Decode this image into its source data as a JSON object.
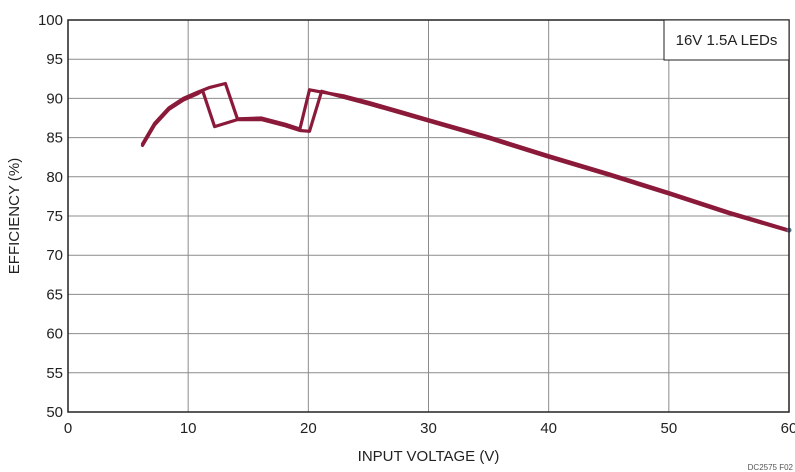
{
  "chart_data": {
    "type": "line",
    "title": "",
    "xlabel": "INPUT VOLTAGE (V)",
    "ylabel": "EFFICIENCY (%)",
    "xlim": [
      0,
      60
    ],
    "ylim": [
      50,
      100
    ],
    "xticks": [
      0,
      10,
      20,
      30,
      40,
      50,
      60
    ],
    "yticks": [
      50,
      55,
      60,
      65,
      70,
      75,
      80,
      85,
      90,
      95,
      100
    ],
    "grid": true,
    "legend_label": "16V 1.5A LEDs",
    "legend_position": "top-right",
    "footer_code": "DC2575 F02",
    "colors": {
      "series": "#8b1a3a",
      "endpoint_marker": "#5a6b85"
    },
    "series": [
      {
        "name": "16V 1.5A LEDs",
        "x": [
          6.2,
          7.2,
          8.4,
          9.6,
          10.8,
          11.8,
          13.1,
          14.1,
          16.1,
          18.1,
          19.3,
          20.1,
          21.1,
          23.0,
          25.0,
          27.5,
          30.0,
          35.0,
          40.0,
          45.0,
          50.0,
          55.0,
          60.0
        ],
        "y": [
          84.2,
          86.8,
          88.8,
          90.0,
          90.8,
          91.4,
          91.9,
          87.4,
          87.5,
          86.7,
          86.1,
          91.1,
          90.8,
          90.3,
          89.5,
          88.4,
          87.3,
          85.1,
          82.7,
          80.4,
          78.0,
          75.5,
          73.2
        ]
      },
      {
        "x": [
          6.2,
          7.2,
          8.4,
          9.6,
          10.8,
          11.2,
          12.2,
          14.1,
          16.1,
          18.1,
          19.3,
          20.1,
          21.1,
          23.0,
          25.0,
          27.5,
          30.0,
          35.0,
          40.0,
          45.0,
          50.0,
          55.0,
          60.0
        ],
        "y": [
          84.0,
          86.6,
          88.6,
          89.8,
          90.6,
          91.0,
          86.4,
          87.3,
          87.3,
          86.5,
          85.9,
          85.8,
          90.9,
          90.1,
          89.3,
          88.2,
          87.1,
          84.9,
          82.5,
          80.2,
          77.8,
          75.3,
          73.1
        ]
      }
    ]
  }
}
